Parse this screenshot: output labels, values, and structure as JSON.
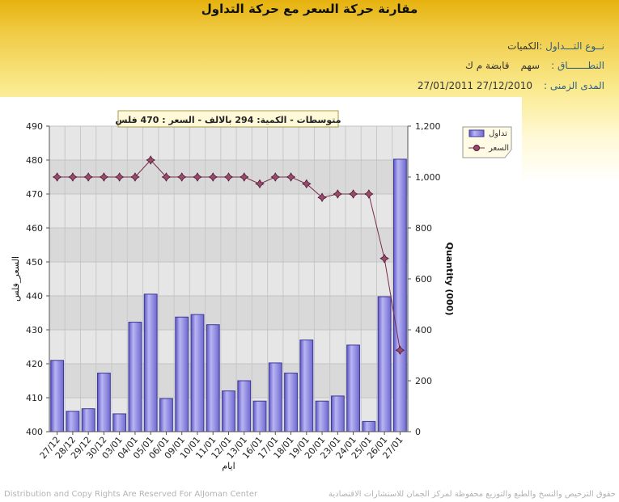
{
  "page": {
    "title": "مقارنة حركة السعر مع حركة التداول",
    "trade_type_label": "نــوع التـــداول :",
    "trade_type_value": "الكميات",
    "scope_label": "النطـــــــاق :",
    "scope_type": "سهم",
    "scope_value": "قابضة م ك",
    "range_label": "المدى الزمنى :",
    "range_from": "27/12/2010",
    "range_to": "27/01/2011",
    "footer_left": "Distribution and Copy Rights Are Reserved For AlJoman Center",
    "footer_right": "حقوق الترخيص والنسخ والطبع والتوزيع محفوظة لمركز الجمان للاستشارات الاقتصادية"
  },
  "chart_data": {
    "type": "bar",
    "combo": "bar + line, dual y-axis",
    "title": "متوسطات - الكمية: 294 بالالف  - السعر : 470 فلس",
    "xlabel": "ايام",
    "ylabel_left": "السعر_فلس",
    "ylabel_right": "Quantity (000)",
    "categories": [
      "27/12",
      "28/12",
      "29/12",
      "30/12",
      "03/01",
      "04/01",
      "05/01",
      "06/01",
      "09/01",
      "10/01",
      "11/01",
      "12/01",
      "13/01",
      "16/01",
      "17/01",
      "18/01",
      "19/01",
      "20/01",
      "23/01",
      "24/01",
      "25/01",
      "26/01",
      "27/01"
    ],
    "series": [
      {
        "name": "تداول",
        "type": "bar",
        "axis": "right",
        "color": "#8f89e2",
        "values": [
          280,
          80,
          90,
          230,
          70,
          430,
          540,
          130,
          450,
          460,
          420,
          160,
          200,
          120,
          270,
          230,
          360,
          120,
          140,
          340,
          40,
          530,
          1070
        ]
      },
      {
        "name": "السعر",
        "type": "line",
        "axis": "left",
        "color": "#7a2b48",
        "values": [
          475,
          475,
          475,
          475,
          475,
          475,
          480,
          475,
          475,
          475,
          475,
          475,
          475,
          473,
          475,
          475,
          473,
          469,
          470,
          470,
          470,
          451,
          424
        ]
      }
    ],
    "ylim_left": [
      400,
      490
    ],
    "yticks_left": [
      400,
      410,
      420,
      430,
      440,
      450,
      460,
      470,
      480,
      490
    ],
    "ylim_right": [
      0,
      1200
    ],
    "yticks_right": [
      0,
      200,
      400,
      600,
      800,
      1000,
      1200
    ],
    "ytick_labels_right": [
      "0",
      "200",
      "400",
      "600",
      "800",
      "1,000",
      "1,200"
    ],
    "legend": "top-right",
    "grid": true
  }
}
